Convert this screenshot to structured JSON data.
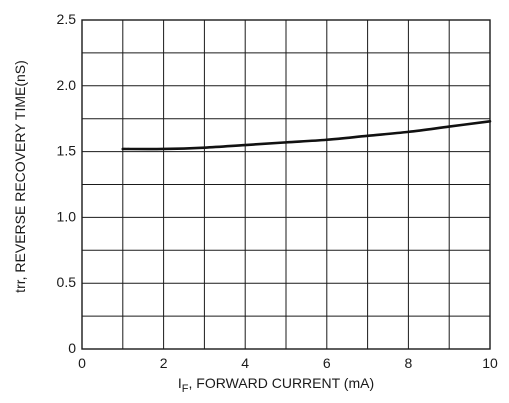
{
  "chart_data": {
    "type": "line",
    "title": "",
    "xlabel": "I_F, FORWARD CURRENT (mA)",
    "xlabel_main": "I",
    "xlabel_sub": "F",
    "xlabel_rest": ", FORWARD CURRENT (mA)",
    "ylabel": "trr, REVERSE RECOVERY TIME(nS)",
    "xlim": [
      0,
      10
    ],
    "ylim": [
      0,
      2.5
    ],
    "x_ticks": [
      0,
      2,
      4,
      6,
      8,
      10
    ],
    "x_tick_labels": [
      "0",
      "2",
      "4",
      "6",
      "8",
      "10"
    ],
    "y_ticks": [
      0,
      0.5,
      1.0,
      1.5,
      2.0,
      2.5
    ],
    "y_tick_labels": [
      "0",
      "0.5",
      "1.0",
      "1.5",
      "2.0",
      "2.5"
    ],
    "x_grid_step": 1,
    "y_grid_step": 0.25,
    "grid": true,
    "series": [
      {
        "x": [
          1,
          2,
          3,
          4,
          5,
          6,
          7,
          8,
          9,
          10
        ],
        "y": [
          1.52,
          1.52,
          1.53,
          1.55,
          1.57,
          1.59,
          1.62,
          1.65,
          1.69,
          1.73
        ],
        "color": "#111111"
      }
    ]
  }
}
